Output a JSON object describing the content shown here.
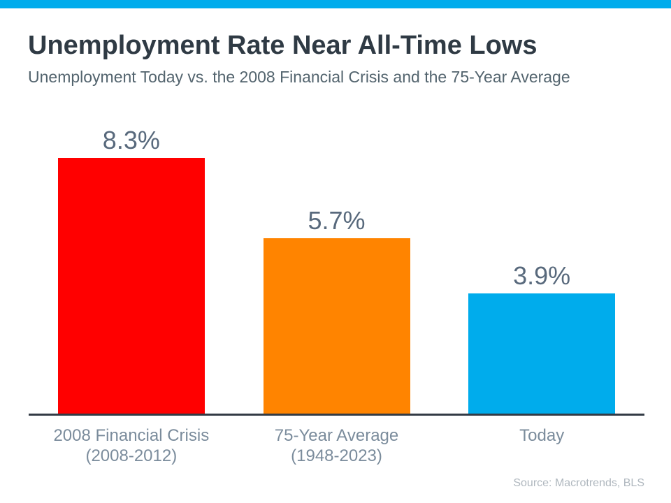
{
  "page": {
    "accent_color": "#00ACEC",
    "background": "#FFFFFF"
  },
  "header": {
    "title": "Unemployment Rate Near All-Time Lows",
    "subtitle": "Unemployment Today vs. the 2008 Financial Crisis and the 75-Year Average"
  },
  "chart_data": {
    "type": "bar",
    "categories": [
      "2008 Financial Crisis (2008-2012)",
      "75-Year Average (1948-2023)",
      "Today"
    ],
    "category_lines": [
      [
        "2008 Financial Crisis",
        "(2008-2012)"
      ],
      [
        "75-Year Average",
        "(1948-2023)"
      ],
      [
        "Today"
      ]
    ],
    "series_ids": [
      "2008-financial-crisis",
      "75-year-average",
      "today"
    ],
    "values": [
      8.3,
      5.7,
      3.9
    ],
    "value_labels": [
      "8.3%",
      "5.7%",
      "3.9%"
    ],
    "bar_colors": [
      "#FF0000",
      "#FF8400",
      "#00ACEC"
    ],
    "value_label_color": "#58697C",
    "category_label_color": "#7B8C9C",
    "axis_line_color": "#333B45",
    "title": "Unemployment Rate Near All-Time Lows",
    "subtitle": "Unemployment Today vs. the 2008 Financial Crisis and the 75-Year Average",
    "xlabel": "",
    "ylabel": "",
    "ylim": [
      0,
      9.8
    ],
    "grid": false,
    "legend": false,
    "y_axis_shown": false
  },
  "footer": {
    "source": "Source: Macrotrends, BLS"
  }
}
